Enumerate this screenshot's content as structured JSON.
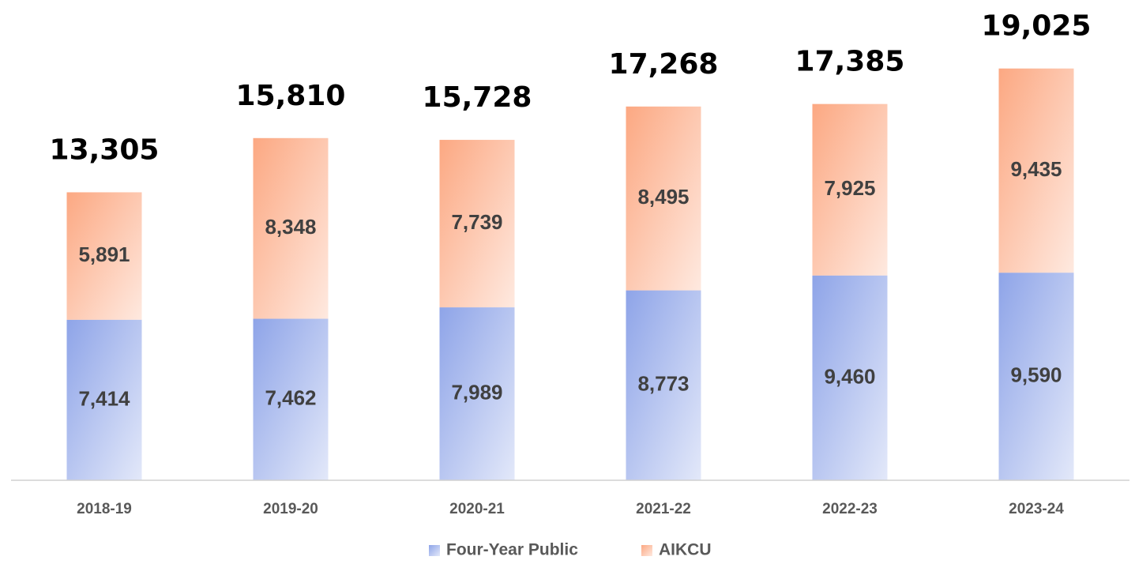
{
  "chart_data": {
    "type": "stacked_bar",
    "categories": [
      "2018-19",
      "2019-20",
      "2020-21",
      "2021-22",
      "2022-23",
      "2023-24"
    ],
    "series": [
      {
        "name": "Four-Year Public",
        "color": "#8ea4e8",
        "values": [
          7414,
          7462,
          7989,
          8773,
          9460,
          9590
        ],
        "value_labels": [
          "7,414",
          "7,462",
          "7,989",
          "8,773",
          "9,460",
          "9,590"
        ]
      },
      {
        "name": "AIKCU",
        "color": "#fca882",
        "values": [
          5891,
          8348,
          7739,
          8495,
          7925,
          9435
        ],
        "value_labels": [
          "5,891",
          "8,348",
          "7,739",
          "8,495",
          "7,925",
          "9,435"
        ]
      }
    ],
    "totals": [
      13305,
      15810,
      15728,
      17268,
      17385,
      19025
    ],
    "total_labels": [
      "13,305",
      "15,810",
      "15,728",
      "17,268",
      "17,385",
      "19,025"
    ],
    "ylim": [
      0,
      20000
    ],
    "legend": "bottom"
  }
}
